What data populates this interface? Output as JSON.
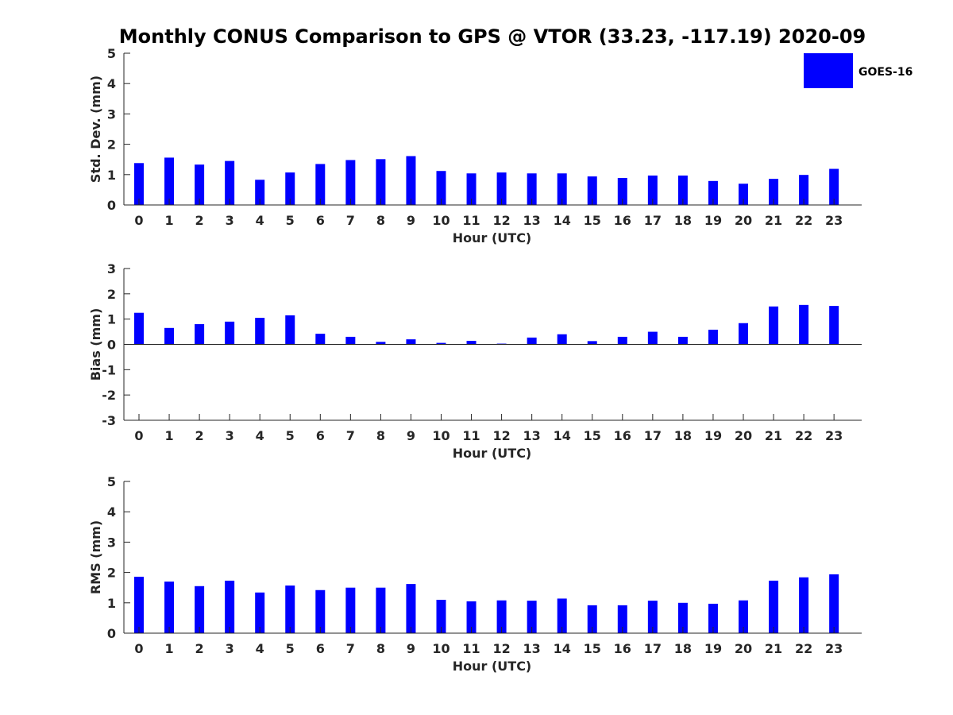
{
  "figure": {
    "title": "Monthly CONUS Comparison to GPS @ VTOR (33.23, -117.19) 2020-09",
    "legend_label": "GOES-16",
    "legend_placement": "top-right",
    "bar_color": "#0000FF"
  },
  "chart_data": [
    {
      "type": "bar",
      "title": "",
      "xlabel": "Hour (UTC)",
      "ylabel": "Std. Dev. (mm)",
      "ylim": [
        0,
        5
      ],
      "yticks": [
        0,
        1,
        2,
        3,
        4,
        5
      ],
      "grid": false,
      "categories": [
        "0",
        "1",
        "2",
        "3",
        "4",
        "5",
        "6",
        "7",
        "8",
        "9",
        "10",
        "11",
        "12",
        "13",
        "14",
        "15",
        "16",
        "17",
        "18",
        "19",
        "20",
        "21",
        "22",
        "23"
      ],
      "series": [
        {
          "name": "GOES-16",
          "color": "#0000FF",
          "values": [
            1.38,
            1.56,
            1.33,
            1.45,
            0.83,
            1.07,
            1.35,
            1.48,
            1.51,
            1.61,
            1.12,
            1.04,
            1.07,
            1.04,
            1.04,
            0.94,
            0.89,
            0.97,
            0.97,
            0.79,
            0.7,
            0.86,
            0.99,
            1.19
          ]
        }
      ]
    },
    {
      "type": "bar",
      "title": "",
      "xlabel": "Hour (UTC)",
      "ylabel": "Bias (mm)",
      "ylim": [
        -3,
        3
      ],
      "yticks": [
        -3,
        -2,
        -1,
        0,
        1,
        2,
        3
      ],
      "grid": false,
      "categories": [
        "0",
        "1",
        "2",
        "3",
        "4",
        "5",
        "6",
        "7",
        "8",
        "9",
        "10",
        "11",
        "12",
        "13",
        "14",
        "15",
        "16",
        "17",
        "18",
        "19",
        "20",
        "21",
        "22",
        "23"
      ],
      "series": [
        {
          "name": "GOES-16",
          "color": "#0000FF",
          "values": [
            1.25,
            0.65,
            0.8,
            0.9,
            1.05,
            1.15,
            0.42,
            0.3,
            0.1,
            0.2,
            0.06,
            0.14,
            0.03,
            0.27,
            0.4,
            0.13,
            0.3,
            0.5,
            0.3,
            0.58,
            0.84,
            1.5,
            1.56,
            1.52
          ]
        }
      ]
    },
    {
      "type": "bar",
      "title": "",
      "xlabel": "Hour (UTC)",
      "ylabel": "RMS (mm)",
      "ylim": [
        0,
        5
      ],
      "yticks": [
        0,
        1,
        2,
        3,
        4,
        5
      ],
      "grid": false,
      "categories": [
        "0",
        "1",
        "2",
        "3",
        "4",
        "5",
        "6",
        "7",
        "8",
        "9",
        "10",
        "11",
        "12",
        "13",
        "14",
        "15",
        "16",
        "17",
        "18",
        "19",
        "20",
        "21",
        "22",
        "23"
      ],
      "series": [
        {
          "name": "GOES-16",
          "color": "#0000FF",
          "values": [
            1.86,
            1.7,
            1.55,
            1.73,
            1.34,
            1.57,
            1.42,
            1.5,
            1.5,
            1.62,
            1.1,
            1.05,
            1.08,
            1.07,
            1.14,
            0.92,
            0.92,
            1.07,
            1.0,
            0.97,
            1.08,
            1.73,
            1.84,
            1.94
          ]
        }
      ]
    }
  ]
}
